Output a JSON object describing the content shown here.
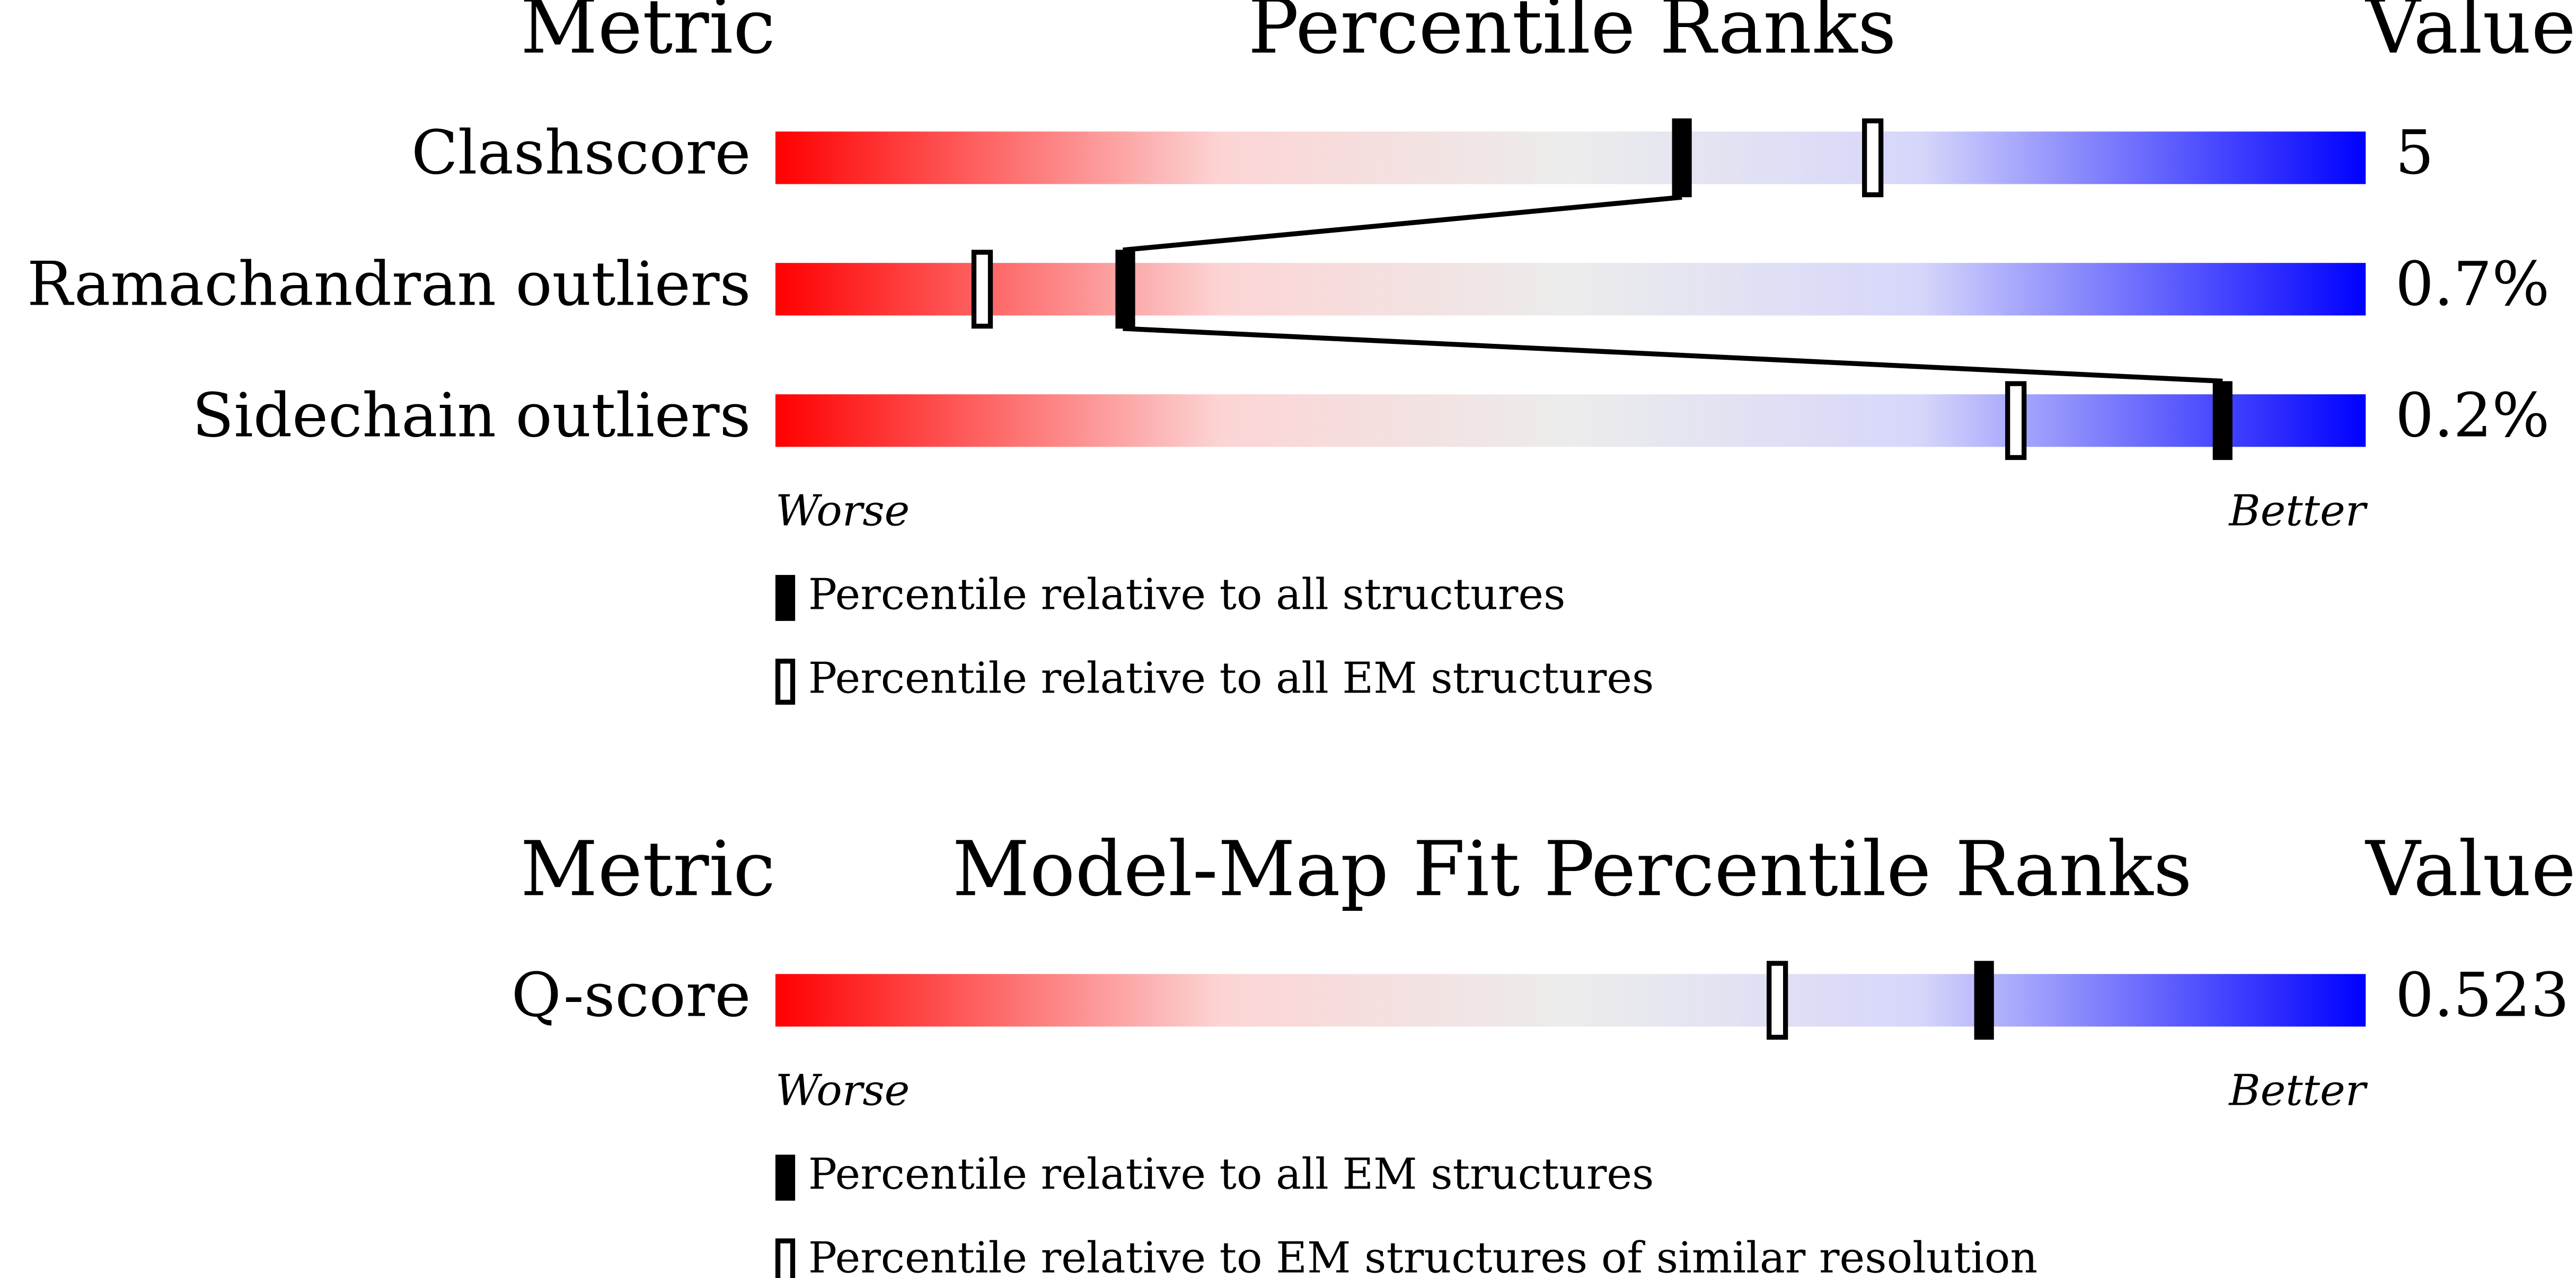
{
  "chart_data": [
    {
      "type": "percentile",
      "metric_header": "Metric",
      "title": "Percentile Ranks",
      "value_header": "Value",
      "categories": [
        "Clashscore",
        "Ramachandran outliers",
        "Sidechain outliers"
      ],
      "metric_values": [
        "5",
        "0.7%",
        "0.2%"
      ],
      "xlim": [
        0,
        100
      ],
      "low_label": "Worse",
      "high_label": "Better",
      "connect": true,
      "series": [
        {
          "name": "Percentile relative to all structures",
          "style": "filled",
          "color": "#000000",
          "values": [
            57,
            22,
            91
          ]
        },
        {
          "name": "Percentile relative to all EM structures",
          "style": "open",
          "color": "#000000",
          "values": [
            69,
            13,
            78
          ]
        }
      ]
    },
    {
      "type": "percentile",
      "metric_header": "Metric",
      "title": "Model-Map Fit Percentile Ranks",
      "value_header": "Value",
      "categories": [
        "Q-score"
      ],
      "metric_values": [
        "0.523"
      ],
      "xlim": [
        0,
        100
      ],
      "low_label": "Worse",
      "high_label": "Better",
      "connect": false,
      "series": [
        {
          "name": "Percentile relative to all EM structures",
          "style": "filled",
          "color": "#000000",
          "values": [
            76
          ]
        },
        {
          "name": "Percentile relative to EM structures of similar resolution",
          "style": "open",
          "color": "#000000",
          "values": [
            63
          ]
        }
      ]
    }
  ]
}
